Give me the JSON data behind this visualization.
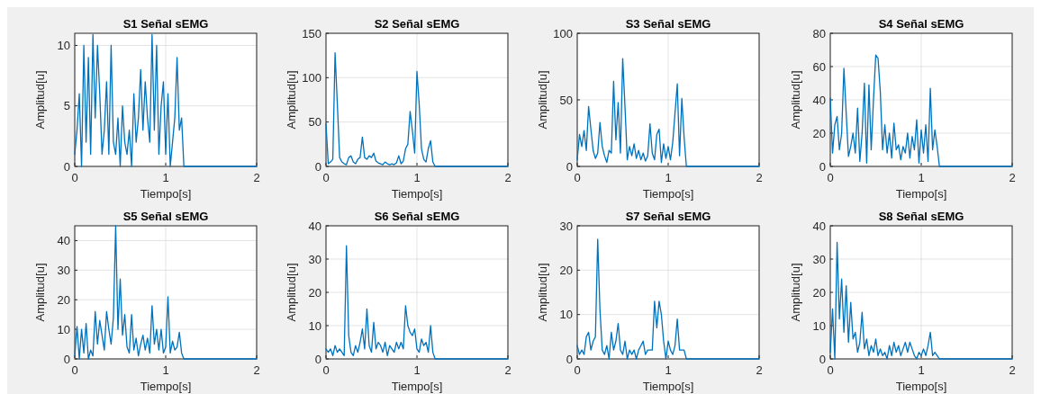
{
  "chart_data": [
    {
      "type": "line",
      "title": "S1 Señal sEMG",
      "xlabel": "Tiempo[s]",
      "ylabel": "Amplitud[u]",
      "xlim": [
        0,
        2
      ],
      "xticks": [
        0,
        1,
        2
      ],
      "ylim": [
        0,
        11
      ],
      "yticks": [
        0,
        5,
        10
      ],
      "grid": true,
      "color": "#0072bd",
      "x": [
        0,
        0.025,
        0.05,
        0.075,
        0.1,
        0.125,
        0.15,
        0.175,
        0.2,
        0.225,
        0.25,
        0.275,
        0.3,
        0.325,
        0.35,
        0.375,
        0.4,
        0.425,
        0.45,
        0.475,
        0.5,
        0.525,
        0.55,
        0.575,
        0.6,
        0.625,
        0.65,
        0.675,
        0.7,
        0.725,
        0.75,
        0.775,
        0.8,
        0.825,
        0.85,
        0.875,
        0.9,
        0.925,
        0.95,
        0.975,
        1,
        1.025,
        1.05,
        1.075,
        1.1,
        1.125,
        1.15,
        1.175,
        1.2,
        2
      ],
      "values": [
        1,
        3,
        6,
        0,
        10,
        2,
        9,
        1,
        10.9,
        4,
        10,
        6,
        1,
        3,
        7,
        1,
        10,
        2,
        1,
        4,
        0,
        5,
        2,
        1,
        3,
        0,
        6,
        2,
        4,
        8,
        3,
        7,
        4,
        2,
        10.9,
        3,
        10,
        1,
        5,
        7,
        1,
        6,
        0,
        2,
        4,
        9,
        3,
        4,
        0,
        0
      ]
    },
    {
      "type": "line",
      "title": "S2 Señal sEMG",
      "xlabel": "Tiempo[s]",
      "ylabel": "Amplitud[u]",
      "xlim": [
        0,
        2
      ],
      "xticks": [
        0,
        1,
        2
      ],
      "ylim": [
        0,
        150
      ],
      "yticks": [
        0,
        50,
        100,
        150
      ],
      "grid": true,
      "color": "#0072bd",
      "x": [
        0,
        0.025,
        0.05,
        0.075,
        0.1,
        0.125,
        0.15,
        0.175,
        0.2,
        0.225,
        0.25,
        0.275,
        0.3,
        0.325,
        0.35,
        0.375,
        0.4,
        0.425,
        0.45,
        0.475,
        0.5,
        0.525,
        0.55,
        0.575,
        0.6,
        0.625,
        0.65,
        0.675,
        0.7,
        0.725,
        0.75,
        0.775,
        0.8,
        0.825,
        0.85,
        0.875,
        0.9,
        0.925,
        0.95,
        0.975,
        1,
        1.025,
        1.05,
        1.075,
        1.1,
        1.125,
        1.15,
        1.175,
        1.2,
        2
      ],
      "values": [
        48,
        3,
        5,
        8,
        128,
        70,
        10,
        5,
        3,
        2,
        10,
        12,
        5,
        3,
        8,
        10,
        33,
        10,
        8,
        12,
        10,
        15,
        6,
        4,
        3,
        2,
        5,
        3,
        2,
        3,
        2,
        4,
        12,
        3,
        6,
        20,
        25,
        62,
        40,
        15,
        107,
        70,
        20,
        8,
        5,
        20,
        29,
        5,
        0,
        0
      ]
    },
    {
      "type": "line",
      "title": "S3 Señal sEMG",
      "xlabel": "Tiempo[s]",
      "ylabel": "Amplitud[u]",
      "xlim": [
        0,
        2
      ],
      "xticks": [
        0,
        1,
        2
      ],
      "ylim": [
        0,
        100
      ],
      "yticks": [
        0,
        50,
        100
      ],
      "grid": true,
      "color": "#0072bd",
      "x": [
        0,
        0.025,
        0.05,
        0.075,
        0.1,
        0.125,
        0.15,
        0.175,
        0.2,
        0.225,
        0.25,
        0.275,
        0.3,
        0.325,
        0.35,
        0.375,
        0.4,
        0.425,
        0.45,
        0.475,
        0.5,
        0.525,
        0.55,
        0.575,
        0.6,
        0.625,
        0.65,
        0.675,
        0.7,
        0.725,
        0.75,
        0.775,
        0.8,
        0.825,
        0.85,
        0.875,
        0.9,
        0.925,
        0.95,
        0.975,
        1,
        1.025,
        1.05,
        1.075,
        1.1,
        1.125,
        1.15,
        1.175,
        1.2,
        2
      ],
      "values": [
        5,
        24,
        15,
        27,
        12,
        45,
        28,
        12,
        6,
        10,
        33,
        15,
        8,
        3,
        12,
        10,
        64,
        20,
        48,
        10,
        81,
        45,
        5,
        15,
        8,
        17,
        6,
        12,
        5,
        10,
        4,
        8,
        32,
        10,
        5,
        24,
        28,
        3,
        17,
        6,
        15,
        5,
        18,
        40,
        62,
        8,
        51,
        22,
        0,
        0
      ]
    },
    {
      "type": "line",
      "title": "S4 Señal sEMG",
      "xlabel": "Tiempo[s]",
      "ylabel": "Amplitud[u]",
      "xlim": [
        0,
        2
      ],
      "xticks": [
        0,
        1,
        2
      ],
      "ylim": [
        0,
        80
      ],
      "yticks": [
        0,
        20,
        40,
        60,
        80
      ],
      "grid": true,
      "color": "#0072bd",
      "x": [
        0,
        0.025,
        0.05,
        0.075,
        0.1,
        0.125,
        0.15,
        0.175,
        0.2,
        0.225,
        0.25,
        0.275,
        0.3,
        0.325,
        0.35,
        0.375,
        0.4,
        0.425,
        0.45,
        0.475,
        0.5,
        0.525,
        0.55,
        0.575,
        0.6,
        0.625,
        0.65,
        0.675,
        0.7,
        0.725,
        0.75,
        0.775,
        0.8,
        0.825,
        0.85,
        0.875,
        0.9,
        0.925,
        0.95,
        0.975,
        1,
        1.025,
        1.05,
        1.075,
        1.1,
        1.125,
        1.15,
        1.175,
        1.2,
        2
      ],
      "values": [
        41,
        8,
        25,
        30,
        10,
        20,
        59,
        32,
        6,
        12,
        20,
        8,
        35,
        3,
        20,
        50,
        2,
        49,
        10,
        40,
        67,
        65,
        45,
        10,
        25,
        8,
        20,
        5,
        26,
        10,
        13,
        4,
        12,
        8,
        20,
        5,
        18,
        10,
        28,
        2,
        22,
        8,
        25,
        3,
        47,
        10,
        22,
        12,
        0,
        0
      ]
    },
    {
      "type": "line",
      "title": "S5 Señal sEMG",
      "xlabel": "Tiempo[s]",
      "ylabel": "Amplitud[u]",
      "xlim": [
        0,
        2
      ],
      "xticks": [
        0,
        1,
        2
      ],
      "ylim": [
        0,
        45
      ],
      "yticks": [
        0,
        10,
        20,
        30,
        40
      ],
      "grid": true,
      "color": "#0072bd",
      "x": [
        0,
        0.025,
        0.05,
        0.075,
        0.1,
        0.125,
        0.15,
        0.175,
        0.2,
        0.225,
        0.25,
        0.275,
        0.3,
        0.325,
        0.35,
        0.375,
        0.4,
        0.425,
        0.45,
        0.475,
        0.5,
        0.525,
        0.55,
        0.575,
        0.6,
        0.625,
        0.65,
        0.675,
        0.7,
        0.725,
        0.75,
        0.775,
        0.8,
        0.825,
        0.85,
        0.875,
        0.9,
        0.925,
        0.95,
        0.975,
        1,
        1.025,
        1.05,
        1.075,
        1.1,
        1.125,
        1.15,
        1.175,
        1.2,
        2
      ],
      "values": [
        1,
        11,
        0,
        10,
        2,
        12,
        0,
        3,
        1,
        16,
        5,
        13,
        8,
        3,
        16,
        10,
        5,
        14,
        45,
        10,
        27,
        8,
        15,
        4,
        2,
        15,
        3,
        7,
        1,
        5,
        8,
        3,
        7,
        2,
        18,
        5,
        10,
        3,
        10,
        2,
        4,
        21,
        2,
        6,
        3,
        4,
        9,
        2,
        0,
        0
      ]
    },
    {
      "type": "line",
      "title": "S6 Señal sEMG",
      "xlabel": "Tiempo[s]",
      "ylabel": "Amplitud[u]",
      "xlim": [
        0,
        2
      ],
      "xticks": [
        0,
        1,
        2
      ],
      "ylim": [
        0,
        40
      ],
      "yticks": [
        0,
        10,
        20,
        30,
        40
      ],
      "grid": true,
      "color": "#0072bd",
      "x": [
        0,
        0.025,
        0.05,
        0.075,
        0.1,
        0.125,
        0.15,
        0.175,
        0.2,
        0.225,
        0.25,
        0.275,
        0.3,
        0.325,
        0.35,
        0.375,
        0.4,
        0.425,
        0.45,
        0.475,
        0.5,
        0.525,
        0.55,
        0.575,
        0.6,
        0.625,
        0.65,
        0.675,
        0.7,
        0.725,
        0.75,
        0.775,
        0.8,
        0.825,
        0.85,
        0.875,
        0.9,
        0.925,
        0.95,
        0.975,
        1,
        1.025,
        1.05,
        1.075,
        1.1,
        1.125,
        1.15,
        1.175,
        1.2,
        2
      ],
      "values": [
        3,
        2,
        3,
        1,
        4,
        2,
        3,
        2,
        1,
        34,
        7,
        2,
        1,
        4,
        2,
        5,
        9,
        3,
        15,
        4,
        2,
        11,
        3,
        5,
        4,
        2,
        5,
        1,
        4,
        3,
        2,
        5,
        3,
        5,
        3,
        16,
        10,
        8,
        7,
        9,
        3,
        2,
        6,
        4,
        5,
        2,
        10,
        2,
        0,
        0
      ]
    },
    {
      "type": "line",
      "title": "S7 Señal sEMG",
      "xlabel": "Tiempo[s]",
      "ylabel": "Amplitud[u]",
      "xlim": [
        0,
        2
      ],
      "xticks": [
        0,
        1,
        2
      ],
      "ylim": [
        0,
        30
      ],
      "yticks": [
        0,
        10,
        20,
        30
      ],
      "grid": true,
      "color": "#0072bd",
      "x": [
        0,
        0.025,
        0.05,
        0.075,
        0.1,
        0.125,
        0.15,
        0.175,
        0.2,
        0.225,
        0.25,
        0.275,
        0.3,
        0.325,
        0.35,
        0.375,
        0.4,
        0.425,
        0.45,
        0.475,
        0.5,
        0.525,
        0.55,
        0.575,
        0.6,
        0.625,
        0.65,
        0.675,
        0.7,
        0.725,
        0.75,
        0.775,
        0.8,
        0.825,
        0.85,
        0.875,
        0.9,
        0.925,
        0.95,
        0.975,
        1,
        1.025,
        1.05,
        1.075,
        1.1,
        1.125,
        1.15,
        1.175,
        1.2,
        2
      ],
      "values": [
        3,
        1,
        2,
        1,
        5,
        6,
        2,
        4,
        5,
        27,
        11,
        2,
        1,
        3,
        0,
        6,
        2,
        4,
        8,
        2,
        1,
        4,
        0,
        2,
        1,
        2,
        0,
        2,
        3,
        4,
        1,
        2,
        2,
        2,
        13,
        7,
        13,
        10,
        4,
        0,
        4,
        2,
        1,
        3,
        9,
        2,
        2,
        2,
        0,
        0
      ]
    },
    {
      "type": "line",
      "title": "S8 Señal sEMG",
      "xlabel": "Tiempo[s]",
      "ylabel": "Amplitud[u]",
      "xlim": [
        0,
        2
      ],
      "xticks": [
        0,
        1,
        2
      ],
      "ylim": [
        0,
        40
      ],
      "yticks": [
        0,
        10,
        20,
        30,
        40
      ],
      "grid": true,
      "color": "#0072bd",
      "x": [
        0,
        0.025,
        0.05,
        0.075,
        0.1,
        0.125,
        0.15,
        0.175,
        0.2,
        0.225,
        0.25,
        0.275,
        0.3,
        0.325,
        0.35,
        0.375,
        0.4,
        0.425,
        0.45,
        0.475,
        0.5,
        0.525,
        0.55,
        0.575,
        0.6,
        0.625,
        0.65,
        0.675,
        0.7,
        0.725,
        0.75,
        0.775,
        0.8,
        0.825,
        0.85,
        0.875,
        0.9,
        0.925,
        0.95,
        0.975,
        1,
        1.025,
        1.05,
        1.075,
        1.1,
        1.125,
        1.15,
        1.175,
        1.2,
        2
      ],
      "values": [
        2,
        15,
        0,
        35,
        12,
        24,
        8,
        22,
        5,
        17,
        6,
        8,
        2,
        5,
        14,
        3,
        6,
        1,
        4,
        2,
        6,
        1,
        3,
        1,
        2,
        0,
        4,
        1,
        5,
        2,
        4,
        1,
        3,
        5,
        2,
        5,
        3,
        1,
        0,
        2,
        1,
        3,
        1,
        4,
        8,
        1,
        2,
        1,
        0,
        0
      ]
    }
  ]
}
